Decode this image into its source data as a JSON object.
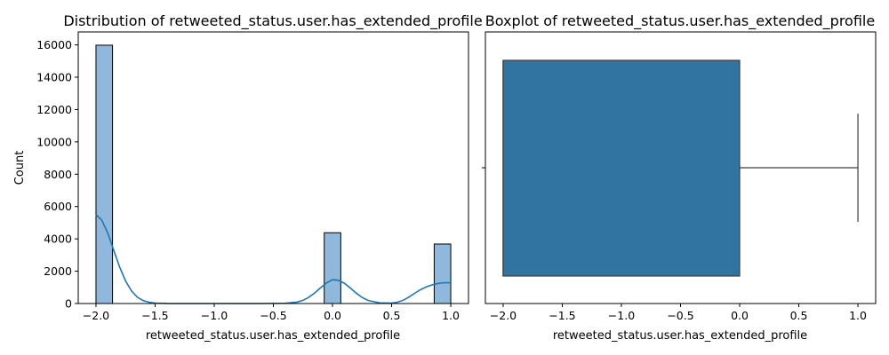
{
  "chart_data": [
    {
      "type": "bar",
      "subtype": "histogram-with-kde",
      "title": "Distribution of retweeted_status.user.has_extended_profile",
      "xlabel": "retweeted_status.user.has_extended_profile",
      "ylabel": "Count",
      "xlim": [
        -2.15,
        1.15
      ],
      "ylim": [
        0,
        16800
      ],
      "xticks": [
        -2.0,
        -1.5,
        -1.0,
        -0.5,
        0.0,
        0.5,
        1.0
      ],
      "xtick_labels": [
        "−2.0",
        "−1.5",
        "−1.0",
        "−0.5",
        "0.0",
        "0.5",
        "1.0"
      ],
      "yticks": [
        0,
        2000,
        4000,
        6000,
        8000,
        10000,
        12000,
        14000,
        16000
      ],
      "ytick_labels": [
        "0",
        "2000",
        "4000",
        "6000",
        "8000",
        "10000",
        "12000",
        "14000",
        "16000"
      ],
      "bins": [
        {
          "x0": -2.0,
          "x1": -1.86,
          "count": 15980
        },
        {
          "x0": -0.07,
          "x1": 0.07,
          "count": 4380
        },
        {
          "x0": 0.86,
          "x1": 1.0,
          "count": 3680
        }
      ],
      "kde": {
        "x": [
          -2.0,
          -1.95,
          -1.9,
          -1.85,
          -1.8,
          -1.75,
          -1.7,
          -1.65,
          -1.6,
          -1.55,
          -1.5,
          -1.4,
          -1.2,
          -1.0,
          -0.8,
          -0.6,
          -0.4,
          -0.3,
          -0.25,
          -0.2,
          -0.15,
          -0.1,
          -0.05,
          0.0,
          0.05,
          0.1,
          0.15,
          0.2,
          0.25,
          0.3,
          0.4,
          0.5,
          0.55,
          0.6,
          0.65,
          0.7,
          0.75,
          0.8,
          0.85,
          0.9,
          0.95,
          1.0
        ],
        "y": [
          5500,
          5150,
          4350,
          3300,
          2250,
          1400,
          780,
          390,
          180,
          75,
          30,
          8,
          0,
          0,
          0,
          0,
          15,
          90,
          200,
          390,
          660,
          980,
          1280,
          1470,
          1440,
          1260,
          960,
          650,
          380,
          190,
          40,
          20,
          80,
          210,
          420,
          660,
          880,
          1050,
          1170,
          1250,
          1290,
          1280
        ]
      },
      "color": "#1f77b4",
      "bar_color": "#8fb8dc"
    },
    {
      "type": "boxplot",
      "title": "Boxplot of retweeted_status.user.has_extended_profile",
      "xlabel": "retweeted_status.user.has_extended_profile",
      "xlim": [
        -2.15,
        1.15
      ],
      "xticks": [
        -2.0,
        -1.5,
        -1.0,
        -0.5,
        0.0,
        0.5,
        1.0
      ],
      "xtick_labels": [
        "−2.0",
        "−1.5",
        "−1.0",
        "−0.5",
        "0.0",
        "0.5",
        "1.0"
      ],
      "box": {
        "whisker_low": -2.0,
        "q1": -2.0,
        "median": -2.0,
        "q3": 0.0,
        "whisker_high": 1.0
      },
      "color": "#3274a1"
    }
  ]
}
